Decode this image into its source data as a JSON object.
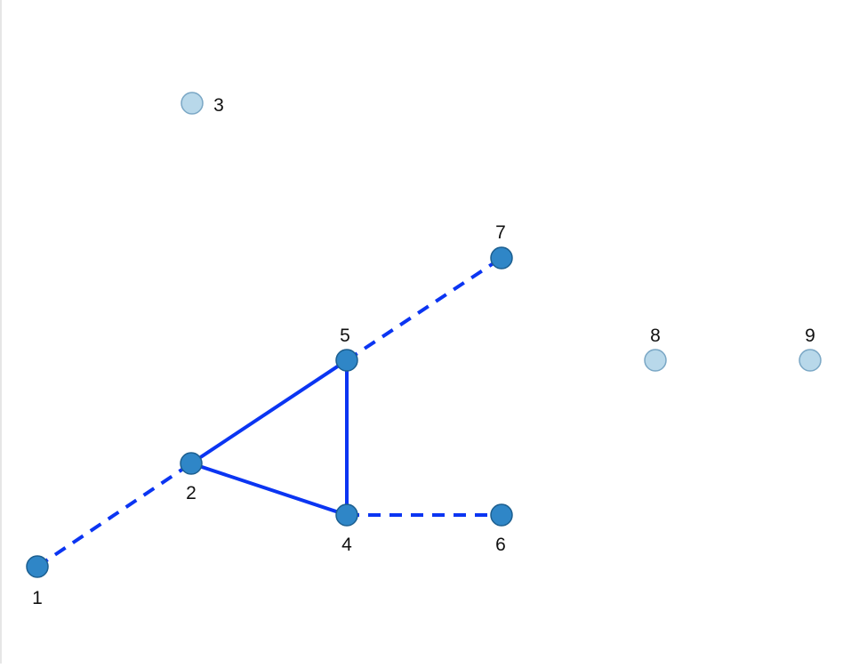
{
  "graph": {
    "colors": {
      "edge": "#0b35f2",
      "node_active_fill": "#2f86c7",
      "node_active_stroke": "#1c5f90",
      "node_inactive_fill": "#b8d8ea",
      "node_inactive_stroke": "#7aa7c5"
    },
    "nodes": [
      {
        "id": "1",
        "label": "1",
        "state": "active"
      },
      {
        "id": "2",
        "label": "2",
        "state": "active"
      },
      {
        "id": "3",
        "label": "3",
        "state": "inactive"
      },
      {
        "id": "4",
        "label": "4",
        "state": "active"
      },
      {
        "id": "5",
        "label": "5",
        "state": "active"
      },
      {
        "id": "6",
        "label": "6",
        "state": "active"
      },
      {
        "id": "7",
        "label": "7",
        "state": "active"
      },
      {
        "id": "8",
        "label": "8",
        "state": "inactive"
      },
      {
        "id": "9",
        "label": "9",
        "state": "inactive"
      }
    ],
    "edges": [
      {
        "from": "2",
        "to": "5",
        "style": "solid"
      },
      {
        "from": "5",
        "to": "4",
        "style": "solid"
      },
      {
        "from": "2",
        "to": "4",
        "style": "solid"
      },
      {
        "from": "1",
        "to": "2",
        "style": "dashed"
      },
      {
        "from": "5",
        "to": "7",
        "style": "dashed"
      },
      {
        "from": "4",
        "to": "6",
        "style": "dashed"
      }
    ]
  }
}
